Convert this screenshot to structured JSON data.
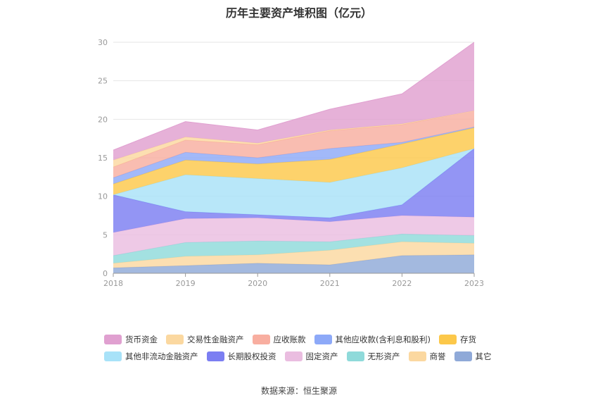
{
  "chart_data": {
    "type": "area",
    "stacked": true,
    "title": "历年主要资产堆积图（亿元）",
    "x": [
      "2018",
      "2019",
      "2020",
      "2021",
      "2022",
      "2023"
    ],
    "ylim": [
      0,
      30
    ],
    "yticks": [
      0,
      5,
      10,
      15,
      20,
      25,
      30
    ],
    "grid": true,
    "legend_position": "bottom",
    "series": [
      {
        "name": "其它",
        "color": "#8fa9d8",
        "values": [
          0.7,
          1.0,
          1.3,
          1.1,
          2.3,
          2.4
        ]
      },
      {
        "name": "商誉",
        "color": "#fbd8a0",
        "values": [
          0.6,
          1.2,
          1.1,
          1.9,
          1.8,
          1.5
        ]
      },
      {
        "name": "无形资产",
        "color": "#8fdada",
        "values": [
          1.0,
          1.8,
          1.8,
          1.1,
          1.0,
          1.0
        ]
      },
      {
        "name": "固定资产",
        "color": "#eabde0",
        "values": [
          3.0,
          3.1,
          3.0,
          2.6,
          2.4,
          2.4
        ]
      },
      {
        "name": "长期股权投资",
        "color": "#7b7ef2",
        "values": [
          4.9,
          0.9,
          0.4,
          0.5,
          1.4,
          8.9
        ]
      },
      {
        "name": "其他非流动金融资产",
        "color": "#a8e2f8",
        "values": [
          0.0,
          4.8,
          4.7,
          4.6,
          4.8,
          0.0
        ]
      },
      {
        "name": "存货",
        "color": "#fcc84a",
        "values": [
          1.4,
          1.9,
          1.9,
          3.0,
          3.1,
          2.7
        ]
      },
      {
        "name": "其他应收款(含利息和股利)",
        "color": "#8da9f8",
        "values": [
          0.8,
          1.0,
          0.8,
          1.4,
          0.2,
          0.1
        ]
      },
      {
        "name": "应收账款",
        "color": "#f8aea0",
        "values": [
          1.4,
          1.6,
          1.7,
          2.3,
          2.3,
          2.1
        ]
      },
      {
        "name": "交易性金融资产",
        "color": "#fbd8a0",
        "values": [
          0.9,
          0.4,
          0.2,
          0.1,
          0.1,
          0.0
        ]
      },
      {
        "name": "货币资金",
        "color": "#e0a0d0",
        "values": [
          1.3,
          2.0,
          1.7,
          2.7,
          3.9,
          8.9
        ]
      }
    ],
    "legend_order": [
      "货币资金",
      "交易性金融资产",
      "应收账款",
      "其他应收款(含利息和股利)",
      "存货",
      "其他非流动金融资产",
      "长期股权投资",
      "固定资产",
      "无形资产",
      "商誉",
      "其它"
    ]
  },
  "source": "数据来源：恒生聚源"
}
